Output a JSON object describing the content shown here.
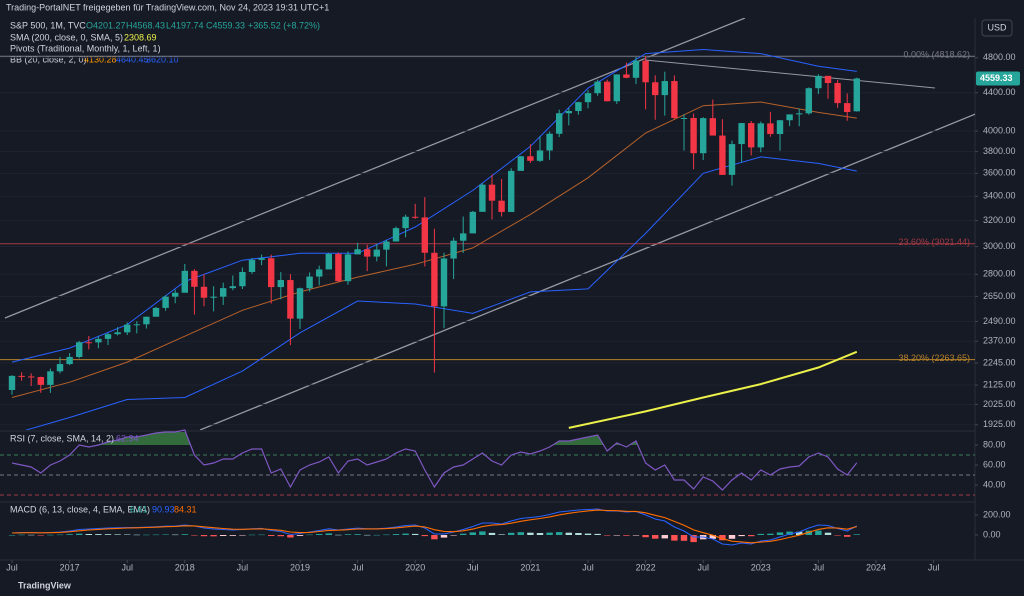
{
  "header": {
    "share": "Trading-PortalNET freigegeben für TradingView.com, Nov 24, 2023 19:31 UTC+1",
    "symbol": "S&P 500, 1M, TVC",
    "o": "O4201.27",
    "h": "H4568.43",
    "l": "L4197.74",
    "c": "C4559.33",
    "change": "+365.52 (+8.72%)",
    "sma": "SMA (200, close, 0, SMA, 5)",
    "sma_value": "2308.69",
    "pivots": "Pivots (Traditional, Monthly, 1, Left, 1)",
    "bb": "BB (20, close, 2, 0)",
    "bb_basis": "4130.28",
    "bb_upper": "4640.45",
    "bb_lower": "3620.10",
    "currency": "USD",
    "footer": "TradingView"
  },
  "chart_data": [
    {
      "type": "candlestick",
      "log_scale": true,
      "ylim": [
        1900,
        5300
      ],
      "yticks": [
        {
          "value": 4800,
          "label": "4800.00"
        },
        {
          "value": 4400,
          "label": "4400.00"
        },
        {
          "value": 4000,
          "label": "4000.00"
        },
        {
          "value": 3800,
          "label": "3800.00"
        },
        {
          "value": 3600,
          "label": "3600.00"
        },
        {
          "value": 3400,
          "label": "3400.00"
        },
        {
          "value": 3200,
          "label": "3200.00"
        },
        {
          "value": 3000,
          "label": "3000.00"
        },
        {
          "value": 2800,
          "label": "2800.00"
        },
        {
          "value": 2650,
          "label": "2650.00"
        },
        {
          "value": 2490,
          "label": "2490.00"
        },
        {
          "value": 2370,
          "label": "2370.00"
        },
        {
          "value": 2245,
          "label": "2245.00"
        },
        {
          "value": 2125,
          "label": "2125.00"
        },
        {
          "value": 2025,
          "label": "2025.00"
        },
        {
          "value": 1925,
          "label": "1925.00"
        }
      ],
      "xticks": [
        {
          "value": 0,
          "label": "Jul"
        },
        {
          "value": 6,
          "label": "2017"
        },
        {
          "value": 12,
          "label": "Jul"
        },
        {
          "value": 18,
          "label": "2018"
        },
        {
          "value": 24,
          "label": "Jul"
        },
        {
          "value": 30,
          "label": "2019"
        },
        {
          "value": 36,
          "label": "Jul"
        },
        {
          "value": 42,
          "label": "2020"
        },
        {
          "value": 48,
          "label": "Jul"
        },
        {
          "value": 54,
          "label": "2021"
        },
        {
          "value": 60,
          "label": "Jul"
        },
        {
          "value": 66,
          "label": "2022"
        },
        {
          "value": 72,
          "label": "Jul"
        },
        {
          "value": 78,
          "label": "2023"
        },
        {
          "value": 84,
          "label": "Jul"
        },
        {
          "value": 90,
          "label": "2024"
        },
        {
          "value": 96,
          "label": "Jul"
        }
      ],
      "up_color": "#26a69a",
      "down_color": "#f23645",
      "open": [
        2099,
        2174,
        2171,
        2168,
        2126,
        2199,
        2239,
        2279,
        2364,
        2363,
        2384,
        2412,
        2423,
        2470,
        2472,
        2519,
        2575,
        2648,
        2674,
        2824,
        2714,
        2641,
        2648,
        2705,
        2718,
        2816,
        2902,
        2914,
        2712,
        2760,
        2507,
        2704,
        2784,
        2834,
        2946,
        2752,
        2942,
        2980,
        2926,
        2977,
        3038,
        3141,
        3231,
        3226,
        2954,
        2585,
        2912,
        3044,
        3100,
        3271,
        3500,
        3363,
        3270,
        3622,
        3756,
        3714,
        3811,
        3973,
        4181,
        4204,
        4298,
        4395,
        4523,
        4308,
        4605,
        4567,
        4766,
        4516,
        4374,
        4530,
        4132,
        4132,
        3785,
        4130,
        3955,
        3586,
        3872,
        4080,
        3840,
        4077,
        3970,
        4109,
        4169,
        4180,
        4450,
        4589,
        4508,
        4288,
        4201.27
      ],
      "high": [
        2178,
        2194,
        2188,
        2170,
        2214,
        2278,
        2301,
        2372,
        2401,
        2399,
        2419,
        2454,
        2484,
        2491,
        2520,
        2582,
        2658,
        2695,
        2873,
        2836,
        2801,
        2718,
        2742,
        2791,
        2848,
        2916,
        2941,
        2940,
        2815,
        2801,
        2708,
        2813,
        2861,
        2954,
        2955,
        2964,
        3028,
        3014,
        3021,
        3050,
        3154,
        3248,
        3337,
        3393,
        3136,
        2955,
        3068,
        3233,
        3279,
        3514,
        3588,
        3549,
        3646,
        3760,
        3870,
        3950,
        3994,
        4218,
        4238,
        4302,
        4429,
        4546,
        4546,
        4608,
        4743,
        4809,
        4819,
        4595,
        4637,
        4594,
        4170,
        4178,
        4140,
        4325,
        4120,
        3905,
        4080,
        4101,
        4095,
        4195,
        4110,
        4170,
        4231,
        4459,
        4607,
        4584,
        4541,
        4393,
        4568.43
      ],
      "low": [
        2075,
        2148,
        2120,
        2084,
        2084,
        2188,
        2233,
        2271,
        2322,
        2329,
        2348,
        2405,
        2407,
        2417,
        2446,
        2520,
        2557,
        2605,
        2675,
        2533,
        2586,
        2553,
        2594,
        2691,
        2699,
        2803,
        2864,
        2603,
        2631,
        2347,
        2444,
        2681,
        2723,
        2848,
        2750,
        2728,
        2952,
        2822,
        2892,
        2856,
        3051,
        3070,
        3214,
        2855,
        2192,
        2448,
        2767,
        2953,
        3115,
        3284,
        3209,
        3233,
        3280,
        3634,
        3695,
        3704,
        3723,
        3940,
        4057,
        4165,
        4233,
        4367,
        4306,
        4279,
        4561,
        4495,
        4222,
        4114,
        4157,
        4123,
        3811,
        3637,
        3722,
        3955,
        3585,
        3491,
        3699,
        3764,
        3794,
        3943,
        3808,
        4049,
        4048,
        4166,
        4386,
        4335,
        4238,
        4103,
        4197.74
      ],
      "close": [
        2174,
        2171,
        2168,
        2126,
        2199,
        2239,
        2279,
        2364,
        2363,
        2384,
        2412,
        2423,
        2470,
        2472,
        2519,
        2575,
        2648,
        2674,
        2824,
        2714,
        2641,
        2648,
        2705,
        2718,
        2816,
        2902,
        2914,
        2712,
        2760,
        2507,
        2704,
        2784,
        2834,
        2946,
        2752,
        2942,
        2980,
        2926,
        2977,
        3038,
        3141,
        3231,
        3226,
        2954,
        2585,
        2912,
        3044,
        3100,
        3271,
        3500,
        3363,
        3270,
        3622,
        3756,
        3714,
        3811,
        3973,
        4181,
        4204,
        4298,
        4395,
        4523,
        4308,
        4605,
        4567,
        4766,
        4516,
        4374,
        4530,
        4132,
        4132,
        3785,
        4130,
        3955,
        3586,
        3872,
        4080,
        3840,
        4077,
        3970,
        4109,
        4169,
        4180,
        4450,
        4589,
        4508,
        4288,
        4194,
        4559.33
      ],
      "lines": [
        {
          "x": [
            0,
            6,
            12,
            18,
            24,
            30,
            36,
            42,
            48,
            54,
            60,
            66,
            72,
            78,
            84,
            88
          ],
          "values": [
            2250,
            2330,
            2470,
            2750,
            2900,
            2950,
            2950,
            3150,
            3450,
            3850,
            4450,
            4850,
            4900,
            4850,
            4700,
            4640.45
          ],
          "color": "#2962ff"
        },
        {
          "x": [
            0,
            6,
            12,
            18,
            24,
            30,
            36,
            42,
            48,
            54,
            60,
            66,
            72,
            78,
            84,
            88
          ],
          "values": [
            2060,
            2140,
            2250,
            2400,
            2560,
            2680,
            2780,
            2870,
            2990,
            3250,
            3560,
            3980,
            4260,
            4300,
            4190,
            4130.28
          ],
          "color": "#b7612a"
        },
        {
          "x": [
            0,
            6,
            12,
            18,
            24,
            30,
            36,
            42,
            48,
            54,
            60,
            66,
            72,
            78,
            84,
            88
          ],
          "values": [
            1880,
            1960,
            2050,
            2060,
            2200,
            2420,
            2620,
            2600,
            2540,
            2680,
            2700,
            3100,
            3600,
            3750,
            3690,
            3620.1
          ],
          "color": "#2962ff"
        },
        {
          "x": [
            58,
            66,
            72,
            78,
            84,
            88
          ],
          "values": [
            1910,
            1990,
            2060,
            2130,
            2220,
            2308.69
          ],
          "color": "#ebf04a"
        }
      ],
      "levels": [
        {
          "value": 4818.62,
          "label": "0.00% (4818.62)",
          "color": "#787b86"
        },
        {
          "value": 3021.44,
          "label": "23.60% (3021.44)",
          "color": "#a33a44"
        },
        {
          "value": 2263.65,
          "label": "38.20% (2263.65)",
          "color": "#b7822a"
        }
      ]
    },
    {
      "type": "rsi",
      "title": "RSI (7, close, SMA, 14, 2)",
      "legend_value": "62.34",
      "ylim": [
        25,
        93
      ],
      "yticks": [
        {
          "value": 80,
          "label": "80.00"
        },
        {
          "value": 60,
          "label": "60.00"
        },
        {
          "value": 40,
          "label": "40.00"
        }
      ],
      "bands": [
        {
          "value": 70,
          "color": "#3a7d5a"
        },
        {
          "value": 50,
          "color": "#787b86"
        },
        {
          "value": 30,
          "color": "#a33a44"
        }
      ],
      "color": "#7e57c2",
      "overbought": 80,
      "values": [
        62,
        60,
        58,
        52,
        60,
        64,
        70,
        80,
        78,
        80,
        83,
        85,
        88,
        88,
        90,
        92,
        93,
        93,
        95,
        70,
        60,
        62,
        66,
        66,
        72,
        76,
        76,
        52,
        56,
        38,
        55,
        60,
        63,
        68,
        52,
        64,
        66,
        60,
        63,
        66,
        72,
        76,
        74,
        55,
        38,
        52,
        58,
        60,
        66,
        72,
        64,
        60,
        70,
        73,
        71,
        74,
        78,
        84,
        84,
        86,
        88,
        90,
        74,
        82,
        78,
        84,
        62,
        55,
        60,
        45,
        45,
        36,
        48,
        44,
        35,
        45,
        52,
        45,
        55,
        50,
        56,
        58,
        59,
        68,
        72,
        68,
        56,
        50,
        62.34
      ]
    },
    {
      "type": "macd",
      "title": "MACD (6, 13, close, 4, EMA, EMA)",
      "ylim": [
        -250,
        320
      ],
      "yticks": [
        {
          "value": 200,
          "label": "200.00"
        },
        {
          "value": 0,
          "label": "0.00"
        }
      ],
      "series": [
        {
          "name": "Histogram",
          "value_label": "6.61",
          "values": [
            0,
            3,
            2,
            -2,
            2,
            4,
            8,
            13,
            10,
            9,
            8,
            6,
            5,
            3,
            3,
            4,
            5,
            4,
            8,
            -1,
            -12,
            -13,
            -10,
            -8,
            -2,
            3,
            4,
            -10,
            -12,
            -25,
            -9,
            4,
            10,
            16,
            2,
            7,
            8,
            1,
            1,
            4,
            9,
            14,
            11,
            -11,
            -43,
            -26,
            -3,
            13,
            26,
            36,
            21,
            6,
            22,
            28,
            23,
            20,
            24,
            29,
            23,
            20,
            14,
            11,
            -5,
            -3,
            -7,
            -1,
            -22,
            -37,
            -34,
            -56,
            -58,
            -71,
            -43,
            -38,
            -53,
            -38,
            -11,
            -12,
            11,
            13,
            26,
            34,
            32,
            43,
            44,
            23,
            -4,
            -18,
            6.61
          ]
        },
        {
          "name": "MACD",
          "color": "#2962ff",
          "value_label": "90.93",
          "values": [
            20,
            25,
            25,
            20,
            25,
            30,
            40,
            55,
            60,
            65,
            70,
            72,
            75,
            75,
            78,
            82,
            88,
            90,
            100,
            90,
            70,
            60,
            55,
            50,
            55,
            62,
            66,
            45,
            35,
            5,
            15,
            30,
            45,
            62,
            50,
            60,
            68,
            62,
            62,
            68,
            80,
            95,
            100,
            70,
            10,
            10,
            30,
            55,
            85,
            120,
            120,
            110,
            140,
            165,
            175,
            185,
            205,
            230,
            240,
            250,
            255,
            260,
            240,
            240,
            230,
            235,
            200,
            160,
            140,
            80,
            40,
            -20,
            -20,
            -40,
            -90,
            -100,
            -80,
            -90,
            -60,
            -50,
            -20,
            10,
            30,
            70,
            100,
            95,
            65,
            40,
            90.93
          ]
        },
        {
          "name": "Signal",
          "color": "#ff6d00",
          "value_label": "84.31",
          "values": [
            20,
            22,
            23,
            22,
            23,
            26,
            32,
            42,
            50,
            56,
            62,
            66,
            70,
            72,
            75,
            78,
            83,
            86,
            92,
            91,
            82,
            73,
            65,
            58,
            57,
            59,
            62,
            55,
            47,
            30,
            24,
            26,
            35,
            46,
            48,
            53,
            60,
            61,
            61,
            64,
            71,
            81,
            89,
            81,
            53,
            36,
            33,
            42,
            59,
            84,
            99,
            104,
            118,
            137,
            152,
            165,
            181,
            201,
            217,
            230,
            241,
            249,
            245,
            243,
            237,
            236,
            222,
            197,
            174,
            136,
            98,
            51,
            23,
            -2,
            -37,
            -62,
            -69,
            -78,
            -71,
            -63,
            -46,
            -24,
            -2,
            27,
            56,
            72,
            69,
            58,
            84.31
          ]
        }
      ]
    }
  ]
}
